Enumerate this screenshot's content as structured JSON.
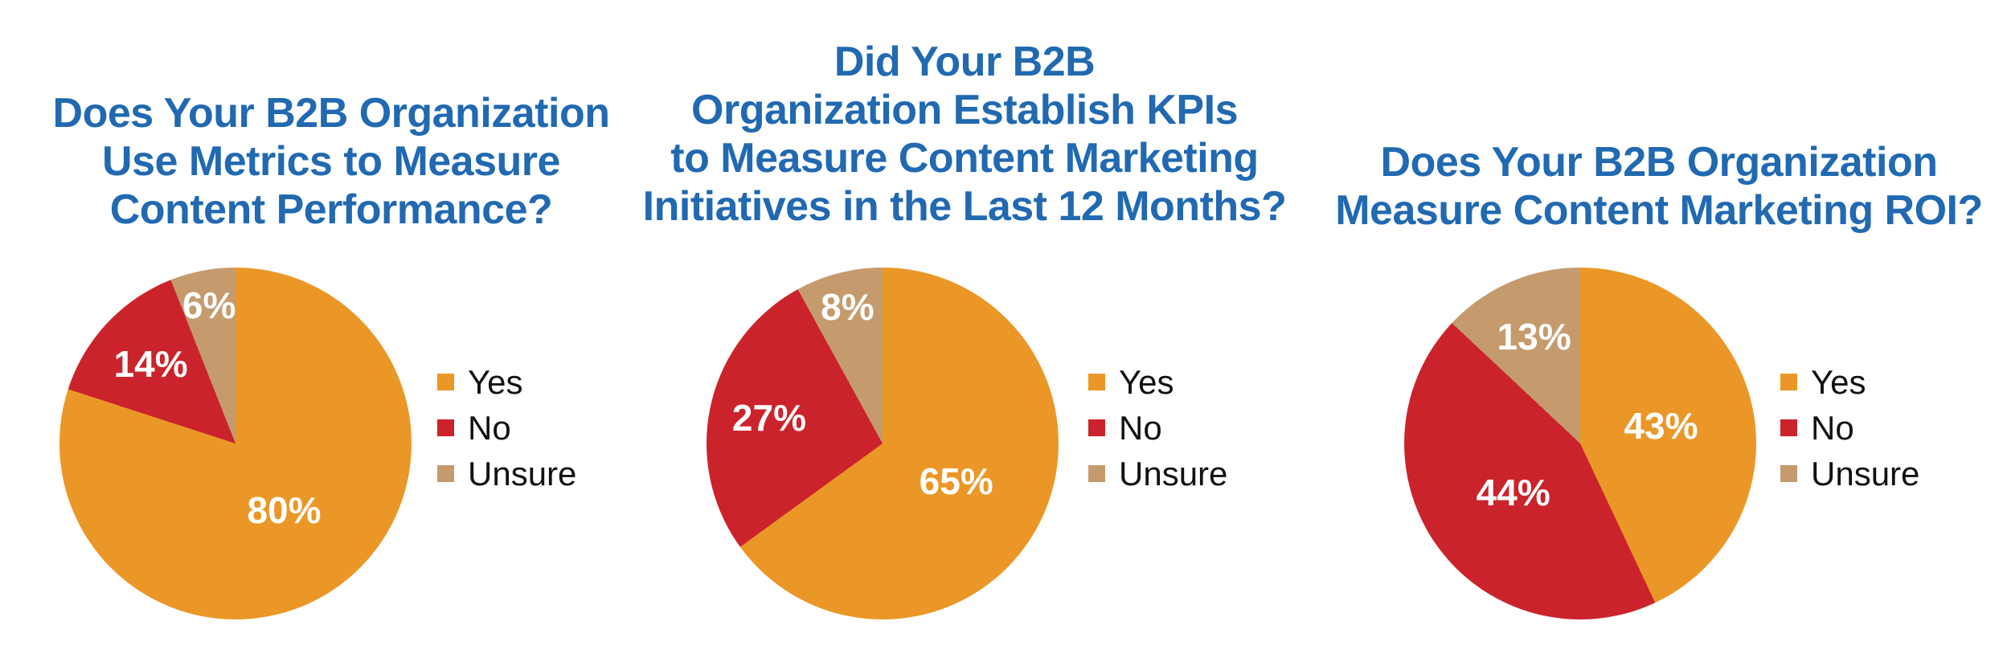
{
  "page": {
    "background": "#FFFFFF",
    "title_color": "#2169B1",
    "legend_text_color": "#111111",
    "slice_label_color": "#FFFFFF"
  },
  "chart_data": [
    {
      "type": "pie",
      "title": "Does Your B2B Organization\nUse Metrics to Measure\nContent Performance?",
      "title_color": "#2169B1",
      "legend_position": "right",
      "legend_entries": [
        "Yes",
        "No",
        "Unsure"
      ],
      "slices": [
        {
          "name": "Yes",
          "value": 80,
          "label": "80%",
          "color": "#EA9727"
        },
        {
          "name": "No",
          "value": 14,
          "label": "14%",
          "color": "#CB232C"
        },
        {
          "name": "Unsure",
          "value": 6,
          "label": "6%",
          "color": "#C59B6E"
        }
      ]
    },
    {
      "type": "pie",
      "title": "Did Your B2B\nOrganization Establish KPIs\nto Measure Content Marketing\nInitiatives in the Last 12 Months?",
      "title_color": "#2169B1",
      "legend_position": "right",
      "legend_entries": [
        "Yes",
        "No",
        "Unsure"
      ],
      "slices": [
        {
          "name": "Yes",
          "value": 65,
          "label": "65%",
          "color": "#EA9727"
        },
        {
          "name": "No",
          "value": 27,
          "label": "27%",
          "color": "#CB232C"
        },
        {
          "name": "Unsure",
          "value": 8,
          "label": "8%",
          "color": "#C59B6E"
        }
      ]
    },
    {
      "type": "pie",
      "title": "Does Your B2B Organization\nMeasure Content Marketing ROI?",
      "title_color": "#2169B1",
      "legend_position": "right",
      "legend_entries": [
        "Yes",
        "No",
        "Unsure"
      ],
      "slices": [
        {
          "name": "Yes",
          "value": 43,
          "label": "43%",
          "color": "#EA9727"
        },
        {
          "name": "No",
          "value": 44,
          "label": "44%",
          "color": "#CB232C"
        },
        {
          "name": "Unsure",
          "value": 13,
          "label": "13%",
          "color": "#C59B6E"
        }
      ]
    }
  ]
}
